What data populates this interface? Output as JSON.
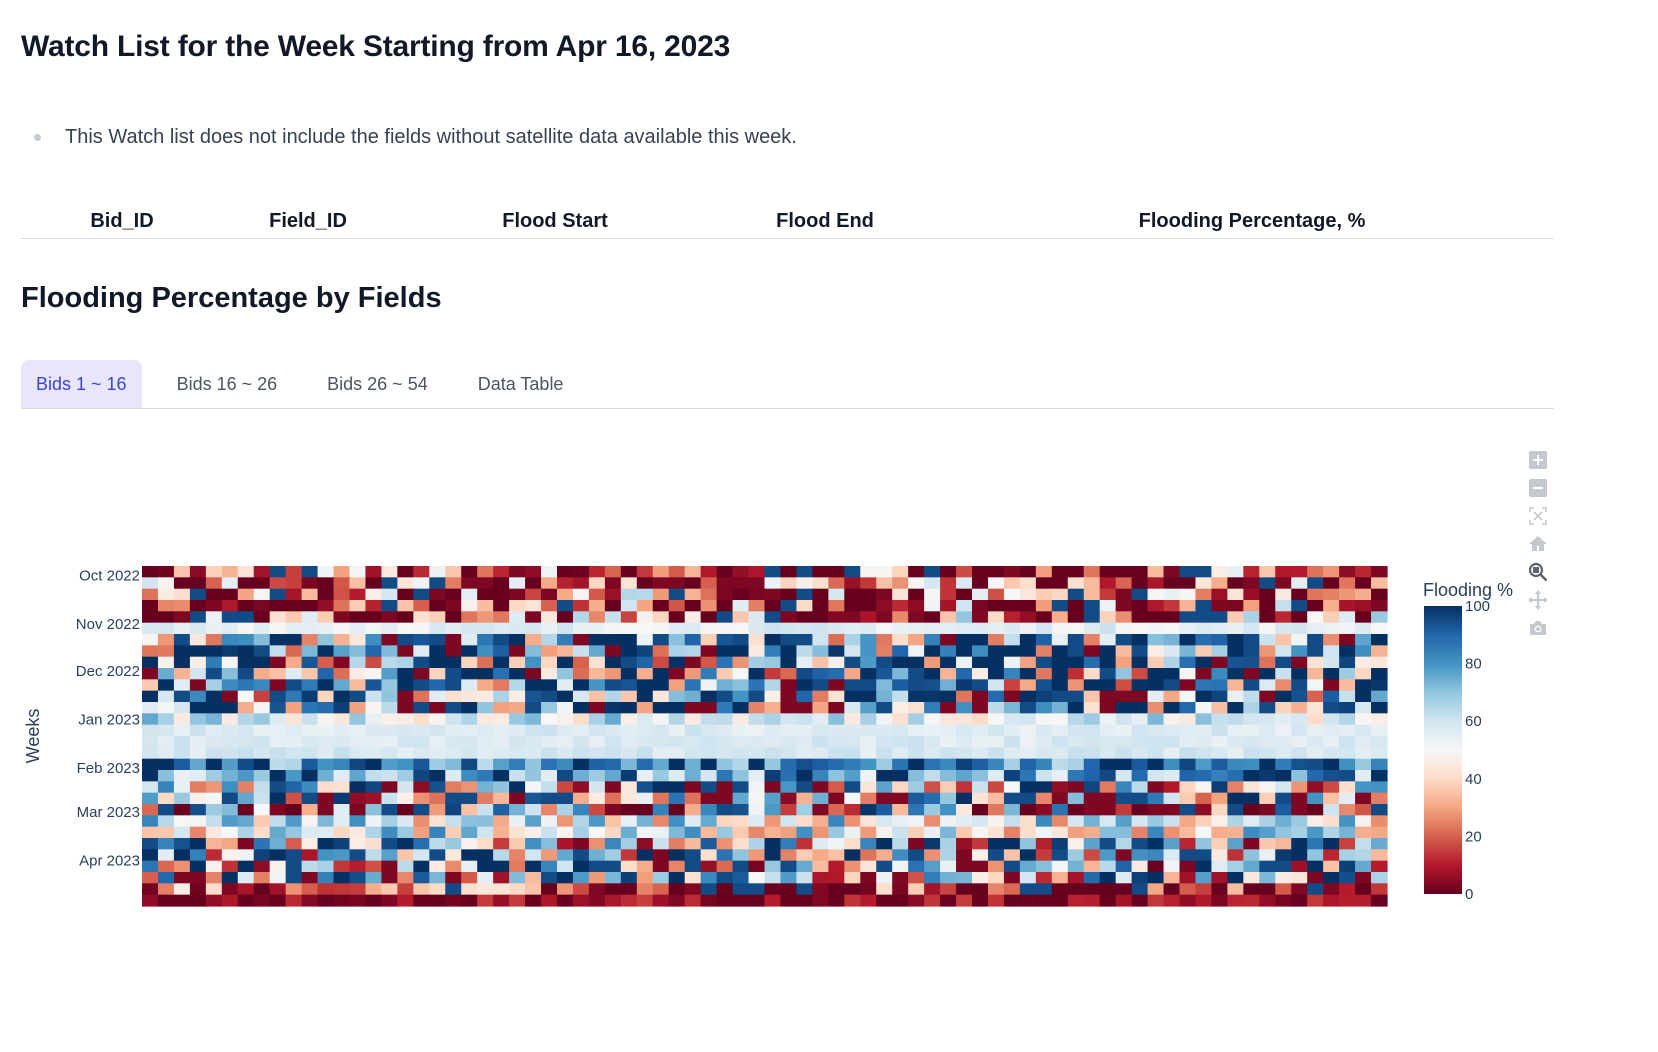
{
  "page": {
    "title": "Watch List for the Week Starting from Apr 16, 2023",
    "note": "This Watch list does not include the fields without satellite data available this week."
  },
  "watch_table": {
    "columns": [
      "Bid_ID",
      "Field_ID",
      "Flood Start",
      "Flood End",
      "Flooding Percentage, %"
    ],
    "rows": []
  },
  "section": {
    "title": "Flooding Percentage by Fields"
  },
  "tabs": [
    {
      "label": "Bids 1 ~ 16",
      "active": true
    },
    {
      "label": "Bids 16 ~ 26",
      "active": false
    },
    {
      "label": "Bids 26 ~ 54",
      "active": false
    },
    {
      "label": "Data Table",
      "active": false
    }
  ],
  "modebar": {
    "icons": [
      "zoom-in-icon",
      "zoom-out-icon",
      "autoscale-icon",
      "reset-axes-icon",
      "zoom-icon",
      "pan-icon",
      "camera-icon"
    ]
  },
  "colors": {
    "accent": "#3b44d6",
    "tab_active_bg": "#e7e6fb",
    "colorscale": [
      "#67001f",
      "#b2182b",
      "#d6604d",
      "#f4a582",
      "#fddbc7",
      "#f7f7f7",
      "#d1e5f0",
      "#92c5de",
      "#4393c3",
      "#2166ac",
      "#053061"
    ]
  },
  "chart_data": {
    "type": "heatmap",
    "title": "",
    "xlabel": "",
    "ylabel": "Weeks",
    "y_ticks": [
      "Oct 2022",
      "Nov 2022",
      "Dec 2022",
      "Jan 2023",
      "Feb 2023",
      "Mar 2023",
      "Apr 2023"
    ],
    "y_range": [
      "2022-09-25",
      "2023-04-30"
    ],
    "colorbar": {
      "title": "Flooding %",
      "ticks": [
        0,
        20,
        40,
        60,
        80,
        100
      ],
      "range": [
        0,
        100
      ]
    },
    "colorscale": "RdBu",
    "n_fields": 78,
    "n_weeks": 30,
    "week_profiles": [
      {
        "week": "2022-09-25",
        "mean": 18,
        "spread": 40
      },
      {
        "week": "2022-10-02",
        "mean": 15,
        "spread": 45
      },
      {
        "week": "2022-10-09",
        "mean": 18,
        "spread": 50
      },
      {
        "week": "2022-10-16",
        "mean": 12,
        "spread": 50
      },
      {
        "week": "2022-10-23",
        "mean": 18,
        "spread": 55
      },
      {
        "week": "2022-10-30",
        "mean": 55,
        "spread": 6
      },
      {
        "week": "2022-11-06",
        "mean": 70,
        "spread": 50
      },
      {
        "week": "2022-11-13",
        "mean": 72,
        "spread": 55
      },
      {
        "week": "2022-11-20",
        "mean": 72,
        "spread": 55
      },
      {
        "week": "2022-11-27",
        "mean": 68,
        "spread": 55
      },
      {
        "week": "2022-12-04",
        "mean": 70,
        "spread": 55
      },
      {
        "week": "2022-12-11",
        "mean": 70,
        "spread": 55
      },
      {
        "week": "2022-12-18",
        "mean": 72,
        "spread": 50
      },
      {
        "week": "2022-12-25",
        "mean": 58,
        "spread": 18
      },
      {
        "week": "2023-01-01",
        "mean": 57,
        "spread": 4
      },
      {
        "week": "2023-01-08",
        "mean": 57,
        "spread": 4
      },
      {
        "week": "2023-01-15",
        "mean": 58,
        "spread": 4
      },
      {
        "week": "2023-01-22",
        "mean": 88,
        "spread": 25
      },
      {
        "week": "2023-01-29",
        "mean": 82,
        "spread": 30
      },
      {
        "week": "2023-02-05",
        "mean": 60,
        "spread": 55
      },
      {
        "week": "2023-02-12",
        "mean": 55,
        "spread": 55
      },
      {
        "week": "2023-02-19",
        "mean": 42,
        "spread": 60
      },
      {
        "week": "2023-02-26",
        "mean": 55,
        "spread": 30
      },
      {
        "week": "2023-03-05",
        "mean": 55,
        "spread": 30
      },
      {
        "week": "2023-03-12",
        "mean": 60,
        "spread": 55
      },
      {
        "week": "2023-03-19",
        "mean": 62,
        "spread": 55
      },
      {
        "week": "2023-03-26",
        "mean": 58,
        "spread": 60
      },
      {
        "week": "2023-04-02",
        "mean": 62,
        "spread": 55
      },
      {
        "week": "2023-04-09",
        "mean": 12,
        "spread": 35
      },
      {
        "week": "2023-04-16",
        "mean": 4,
        "spread": 12
      }
    ]
  }
}
